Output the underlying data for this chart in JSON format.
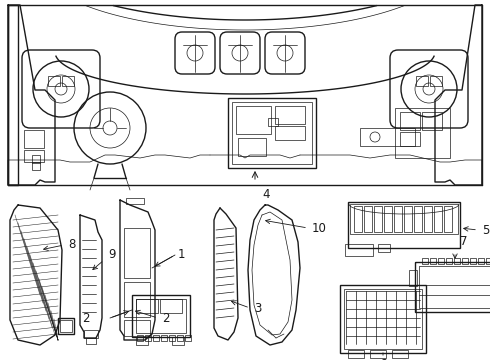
{
  "bg_color": "#ffffff",
  "line_color": "#1a1a1a",
  "fig_width": 4.9,
  "fig_height": 3.6,
  "dpi": 100,
  "label_fontsize": 8.5,
  "lw_main": 1.0,
  "lw_thin": 0.5,
  "lw_thick": 1.4
}
